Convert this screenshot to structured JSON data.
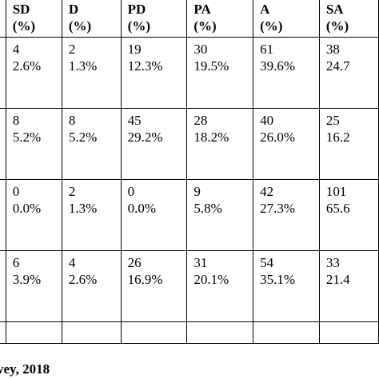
{
  "table": {
    "headers": [
      {
        "code": "SD",
        "unit": "(%)"
      },
      {
        "code": "D",
        "unit": "(%)"
      },
      {
        "code": "PD",
        "unit": "(%)"
      },
      {
        "code": "PA",
        "unit": "(%)"
      },
      {
        "code": "A",
        "unit": "(%)"
      },
      {
        "code": "SA",
        "unit": "(%)"
      }
    ],
    "rows": [
      [
        {
          "count": "4",
          "percent": "2.6%"
        },
        {
          "count": "2",
          "percent": "1.3%"
        },
        {
          "count": "19",
          "percent": "12.3%"
        },
        {
          "count": "30",
          "percent": "19.5%"
        },
        {
          "count": "61",
          "percent": "39.6%"
        },
        {
          "count": "38",
          "percent": "24.7"
        }
      ],
      [
        {
          "count": "8",
          "percent": "5.2%"
        },
        {
          "count": "8",
          "percent": "5.2%"
        },
        {
          "count": "45",
          "percent": "29.2%"
        },
        {
          "count": "28",
          "percent": "18.2%"
        },
        {
          "count": "40",
          "percent": "26.0%"
        },
        {
          "count": "25",
          "percent": "16.2"
        }
      ],
      [
        {
          "count": "0",
          "percent": "0.0%"
        },
        {
          "count": "2",
          "percent": "1.3%"
        },
        {
          "count": "0",
          "percent": "0.0%"
        },
        {
          "count": "9",
          "percent": "5.8%"
        },
        {
          "count": "42",
          "percent": "27.3%"
        },
        {
          "count": "101",
          "percent": "65.6"
        }
      ],
      [
        {
          "count": "6",
          "percent": "3.9%"
        },
        {
          "count": "4",
          "percent": "2.6%"
        },
        {
          "count": "26",
          "percent": "16.9%"
        },
        {
          "count": "31",
          "percent": "20.1%"
        },
        {
          "count": "54",
          "percent": "35.1%"
        },
        {
          "count": "33",
          "percent": "21.4"
        }
      ]
    ]
  },
  "source_note": "vey, 2018"
}
